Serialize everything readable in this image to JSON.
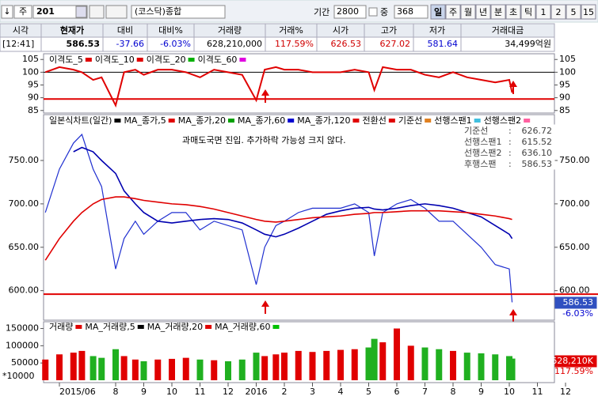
{
  "toolbar": {
    "arrow": "↓",
    "kind": "주",
    "code": "201",
    "market": "(코스닥)종합",
    "period_label": "기간",
    "period": "2800",
    "mid_label": "중",
    "count": "368",
    "buttons": [
      "일",
      "주",
      "월",
      "년",
      "분",
      "초",
      "틱",
      "1",
      "2",
      "5",
      "15"
    ]
  },
  "quote": {
    "headers": [
      "시각",
      "현재가",
      "대비",
      "대비%",
      "거래량",
      "거래%",
      "시가",
      "고가",
      "저가",
      "거래대금"
    ],
    "values": [
      "[12:41]",
      "586.53",
      "-37.66",
      "-6.03%",
      "628,210,000",
      "117.59%",
      "626.53",
      "627.02",
      "581.64",
      "34,499억원"
    ],
    "value_colors": [
      "#000",
      "#000",
      "#0000d0",
      "#0000d0",
      "#000",
      "#d00000",
      "#d00000",
      "#d00000",
      "#0000d0",
      "#000"
    ]
  },
  "x": [
    -0.5,
    0,
    0.5,
    0.8,
    1.2,
    1.5,
    2,
    2.3,
    2.7,
    3,
    3.5,
    4,
    4.5,
    5,
    5.5,
    6,
    6.5,
    7,
    7.3,
    7.7,
    8,
    8.5,
    9,
    9.5,
    10,
    10.5,
    11,
    11.2,
    11.5,
    12,
    12.5,
    13,
    13.5,
    14,
    14.5,
    15,
    15.5,
    16,
    16.1
  ],
  "x_axis": {
    "ticks": [
      {
        "value": 0,
        "label": "2015/06"
      },
      {
        "value": 2,
        "label": "8"
      },
      {
        "value": 3,
        "label": "9"
      },
      {
        "value": 4,
        "label": "10"
      },
      {
        "value": 5,
        "label": "11"
      },
      {
        "value": 6,
        "label": "12"
      },
      {
        "value": 7,
        "label": "2016"
      },
      {
        "value": 8,
        "label": "2"
      },
      {
        "value": 9,
        "label": "3"
      },
      {
        "value": 10,
        "label": "4"
      },
      {
        "value": 11,
        "label": "5"
      },
      {
        "value": 12,
        "label": "6"
      },
      {
        "value": 13,
        "label": "7"
      },
      {
        "value": 14,
        "label": "8"
      },
      {
        "value": 15,
        "label": "9"
      },
      {
        "value": 16,
        "label": "10"
      },
      {
        "value": 17,
        "label": "11"
      },
      {
        "value": 18,
        "label": "12"
      }
    ]
  },
  "disparity": {
    "legend": [
      {
        "name": "이격도_5",
        "color": "#e00000"
      },
      {
        "name": "이격도_10",
        "color": "#e00000"
      },
      {
        "name": "이격도_20",
        "color": "#00b000"
      },
      {
        "name": "이격도_60",
        "color": "#e000e0"
      }
    ],
    "color": "#e00000",
    "values": [
      100,
      102,
      101,
      100,
      97,
      98,
      87,
      100,
      101,
      99,
      101,
      101,
      100,
      98,
      101,
      100,
      99,
      89,
      101,
      102,
      101,
      101,
      100,
      100,
      100,
      101,
      100,
      93,
      102,
      101,
      101,
      99,
      98,
      100,
      98,
      97,
      96,
      97,
      92
    ],
    "ylim": [
      84,
      106
    ],
    "yticks": [
      85,
      90,
      95,
      100,
      105
    ],
    "baseline": 100,
    "oversold_line": 89.5
  },
  "price": {
    "legend": [
      {
        "name": "일본식차트(일간)",
        "color": "#000"
      },
      {
        "name": "MA_종가,5",
        "color": "#e00000"
      },
      {
        "name": "MA_종가,20",
        "color": "#00a000"
      },
      {
        "name": "MA_종가,60",
        "color": "#0000d0"
      },
      {
        "name": "MA_종가,120",
        "color": "#e00000"
      },
      {
        "name": "전환선",
        "color": "#e00000"
      },
      {
        "name": "기준선",
        "color": "#e08020"
      },
      {
        "name": "선행스팬1",
        "color": "#40c0e0"
      },
      {
        "name": "선행스팬2",
        "color": "#ff60a0"
      }
    ],
    "series": [
      {
        "color": "#2030d0",
        "values": [
          690,
          740,
          770,
          780,
          740,
          720,
          625,
          660,
          680,
          665,
          680,
          690,
          690,
          670,
          680,
          675,
          670,
          607,
          650,
          675,
          680,
          690,
          695,
          695,
          695,
          700,
          690,
          640,
          690,
          700,
          705,
          695,
          680,
          680,
          665,
          650,
          630,
          625,
          586.53
        ]
      },
      {
        "color": "#0000b0",
        "values": [
          null,
          null,
          760,
          765,
          760,
          750,
          735,
          715,
          700,
          690,
          680,
          678,
          680,
          682,
          683,
          682,
          678,
          670,
          665,
          662,
          665,
          672,
          680,
          688,
          692,
          695,
          696,
          694,
          693,
          695,
          698,
          700,
          698,
          695,
          690,
          685,
          675,
          665,
          660
        ]
      },
      {
        "color": "#e00000",
        "values": [
          635,
          660,
          680,
          690,
          700,
          705,
          708,
          708,
          706,
          704,
          702,
          700,
          699,
          697,
          694,
          690,
          686,
          682,
          680,
          679,
          680,
          682,
          684,
          685,
          686,
          688,
          689,
          690,
          690,
          691,
          692,
          692,
          692,
          691,
          690,
          688,
          686,
          683,
          682
        ]
      }
    ],
    "ylim": [
      566,
      801
    ],
    "yticks": [
      {
        "value": 600,
        "label": "600.00"
      },
      {
        "value": 650,
        "label": "650.00"
      },
      {
        "value": 700,
        "label": "700.00"
      },
      {
        "value": 750,
        "label": "750.00"
      }
    ],
    "support_line": 596,
    "annotation": "과매도국면 진입. 추가하락 가능성 크지 않다.",
    "info": {
      "sep": ":",
      "items": [
        {
          "label": "기준선",
          "value": "626.72"
        },
        {
          "label": "선행스팬1",
          "value": "615.52"
        },
        {
          "label": "선행스팬2",
          "value": "636.10"
        },
        {
          "label": "후행스팬",
          "value": "586.53"
        }
      ]
    },
    "current_label": "586.53",
    "change_label": "-6.03%"
  },
  "volume": {
    "legend": [
      {
        "name": "거래량",
        "color": "#e00000"
      },
      {
        "name": "MA_거래량,5",
        "color": "#000"
      },
      {
        "name": "MA_거래량,20",
        "color": "#e00000"
      },
      {
        "name": "MA_거래량,60",
        "color": "#00c000"
      }
    ],
    "up_color": "#e00000",
    "down_color": "#20b020",
    "values": [
      60000,
      75000,
      80000,
      85000,
      70000,
      65000,
      90000,
      70000,
      60000,
      55000,
      60000,
      62000,
      65000,
      60000,
      58000,
      55000,
      60000,
      80000,
      70000,
      75000,
      80000,
      85000,
      82000,
      85000,
      88000,
      90000,
      95000,
      120000,
      110000,
      150000,
      100000,
      95000,
      90000,
      85000,
      80000,
      78000,
      75000,
      70000,
      62821
    ],
    "ylim": [
      0,
      165000
    ],
    "yticks": [
      50000,
      100000,
      150000
    ],
    "unit": "*10000",
    "current_label": "628,210K",
    "ratio_label": "117.59%"
  }
}
